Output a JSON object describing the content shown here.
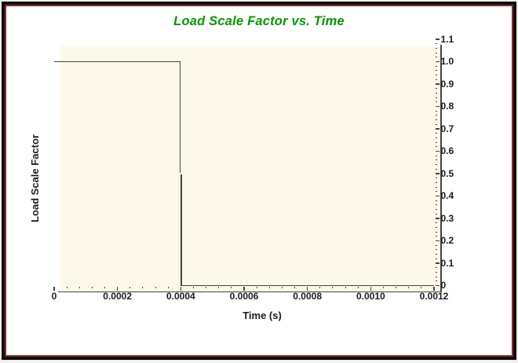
{
  "colors": {
    "outer_background": "#EFEFEF",
    "frame_border": "#0D0D0D",
    "frame_inner_border": "#8B2A2A",
    "content_background": "#FFFFFF",
    "title": "#009A00",
    "plot_background": "#FDF9EA",
    "line": "#45443C",
    "axis": "#45443C",
    "tick_text": "#1B1B1B"
  },
  "chart_data": {
    "type": "line",
    "title": "Load Scale Factor vs. Time",
    "xlabel": "Time (s)",
    "ylabel": "Load Scale Factor",
    "xlim": [
      0,
      0.0012
    ],
    "ylim": [
      0,
      1.1
    ],
    "x_major_step": 0.0002,
    "x_minor_step": 4e-05,
    "y_major_step": 0.1,
    "y_minor_step": 0.02,
    "x_tick_labels": [
      "0",
      "0.0002",
      "0.0004",
      "0.0006",
      "0.0008",
      "0.0010",
      "0.0012"
    ],
    "y_tick_labels": [
      "0",
      "0.1",
      "0.2",
      "0.3",
      "0.4",
      "0.5",
      "0.6",
      "0.7",
      "0.8",
      "0.9",
      "1.0",
      "1.1"
    ],
    "grid": false,
    "legend": "none",
    "y_axis_side": "right",
    "series": [
      {
        "name": "Load Scale Factor",
        "points": [
          [
            0,
            1.0
          ],
          [
            0.0004,
            1.0
          ],
          [
            0.0004,
            0.5
          ],
          [
            0.0004,
            0.0
          ],
          [
            0.0012,
            0.0
          ]
        ]
      }
    ]
  }
}
